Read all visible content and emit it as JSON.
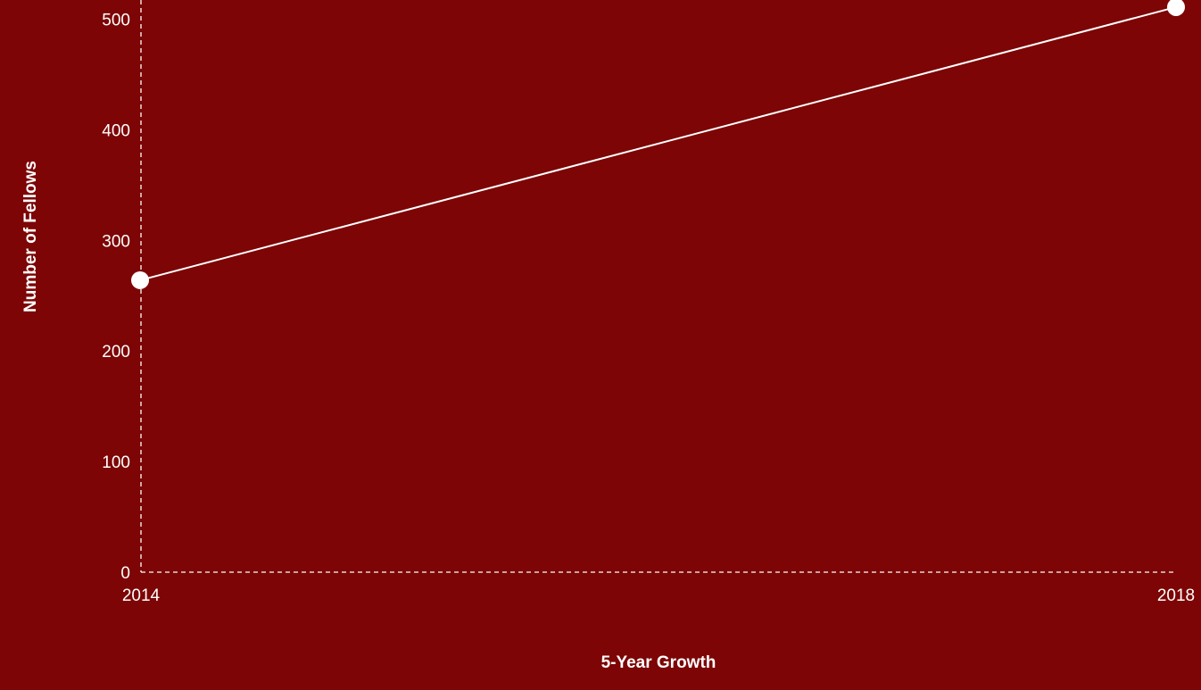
{
  "chart_data": {
    "type": "line",
    "title": "",
    "xlabel": "5-Year Growth",
    "ylabel": "Number of Fellows",
    "x": [
      "2014",
      "2018"
    ],
    "series": [
      {
        "values": [
          264,
          511
        ]
      }
    ],
    "ylim": [
      0,
      515
    ],
    "yticks": [
      0,
      100,
      200,
      300,
      400,
      500
    ],
    "grid": false,
    "legend": "none"
  },
  "colors": {
    "background": "#7d0505",
    "line": "#ffffff",
    "axis": "#ffffff",
    "text": "#ffffff"
  }
}
